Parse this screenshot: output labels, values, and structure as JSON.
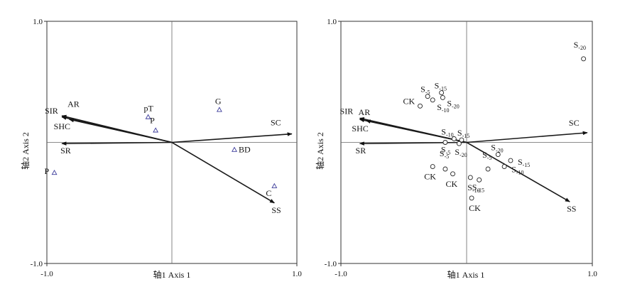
{
  "chart_data": [
    {
      "type": "scatter",
      "subtype": "ordination-biplot",
      "xlabel": "轴1 Axis 1",
      "ylabel": "轴2 Axis 2",
      "xlim": [
        -1.0,
        1.0
      ],
      "ylim": [
        -1.0,
        1.0
      ],
      "xticks": [
        "-1.0",
        "1.0"
      ],
      "yticks": [
        "1.0",
        "-1.0"
      ],
      "grid": false,
      "vectors": [
        {
          "label": "SIR",
          "x": -0.88,
          "y": 0.22
        },
        {
          "label": "AR",
          "x": -0.88,
          "y": 0.21
        },
        {
          "label": "SHC",
          "x": -0.82,
          "y": 0.19
        },
        {
          "label": "SR",
          "x": -0.88,
          "y": -0.01
        },
        {
          "label": "SC",
          "x": 0.96,
          "y": 0.07
        },
        {
          "label": "SS",
          "x": 0.82,
          "y": -0.5
        }
      ],
      "points": [
        {
          "label": "pT",
          "x": -0.19,
          "y": 0.21
        },
        {
          "label": "P",
          "x": -0.13,
          "y": 0.1
        },
        {
          "label": "G",
          "x": 0.38,
          "y": 0.27
        },
        {
          "label": "BD",
          "x": 0.5,
          "y": -0.06
        },
        {
          "label": "C",
          "x": 0.82,
          "y": -0.36
        },
        {
          "label": "P",
          "x": -0.94,
          "y": -0.25
        }
      ]
    },
    {
      "type": "scatter",
      "subtype": "ordination-biplot",
      "xlabel": "轴1 Axis 1",
      "ylabel": "轴2 Axis 2",
      "xlim": [
        -1.0,
        1.0
      ],
      "ylim": [
        -1.0,
        1.0
      ],
      "xticks": [
        "-1.0",
        "1.0"
      ],
      "yticks": [
        "1.0",
        "-1.0"
      ],
      "grid": false,
      "vectors": [
        {
          "label": "SIR",
          "x": -0.85,
          "y": 0.2
        },
        {
          "label": "AR",
          "x": -0.85,
          "y": 0.19
        },
        {
          "label": "SHC",
          "x": -0.8,
          "y": 0.18
        },
        {
          "label": "SR",
          "x": -0.85,
          "y": -0.01
        },
        {
          "label": "SC",
          "x": 0.96,
          "y": 0.08
        },
        {
          "label": "SS",
          "x": 0.82,
          "y": -0.49
        }
      ],
      "points": [
        {
          "label": "S-20",
          "main": "S",
          "sub": "-20",
          "x": 0.93,
          "y": 0.69
        },
        {
          "label": "S-5",
          "main": "S",
          "sub": "-5",
          "x": -0.31,
          "y": 0.38
        },
        {
          "label": "S-15",
          "main": "S",
          "sub": "-15",
          "x": -0.2,
          "y": 0.41
        },
        {
          "label": "CK",
          "main": "CK",
          "sub": "",
          "x": -0.37,
          "y": 0.3
        },
        {
          "label": "S-10",
          "main": "S",
          "sub": "-10",
          "x": -0.27,
          "y": 0.35
        },
        {
          "label": "S-20",
          "main": "S",
          "sub": "-20",
          "x": -0.19,
          "y": 0.37
        },
        {
          "label": "S-10",
          "main": "S",
          "sub": "-10",
          "x": -0.1,
          "y": 0.03
        },
        {
          "label": "S-15",
          "main": "S",
          "sub": "-15",
          "x": -0.04,
          "y": 0.02
        },
        {
          "label": "S-5",
          "main": "S",
          "sub": "-5",
          "x": -0.17,
          "y": 0.0
        },
        {
          "label": "S-20",
          "main": "S",
          "sub": "-20",
          "x": -0.06,
          "y": -0.01
        },
        {
          "label": "S-20",
          "main": "S",
          "sub": "-20",
          "x": 0.25,
          "y": -0.1
        },
        {
          "label": "S-15",
          "main": "S",
          "sub": "-15",
          "x": 0.35,
          "y": -0.15
        },
        {
          "label": "S-5",
          "main": "S",
          "sub": "-5",
          "x": -0.17,
          "y": -0.22
        },
        {
          "label": "S-5",
          "main": "S",
          "sub": "-5",
          "x": 0.17,
          "y": -0.22
        },
        {
          "label": "S-10",
          "main": "S",
          "sub": "-10",
          "x": 0.3,
          "y": -0.2
        },
        {
          "label": "CK",
          "main": "CK",
          "sub": "",
          "x": -0.27,
          "y": -0.2
        },
        {
          "label": "CK",
          "main": "CK",
          "sub": "",
          "x": -0.11,
          "y": -0.26
        },
        {
          "label": "S-10",
          "main": "S",
          "sub": "-10",
          "x": 0.03,
          "y": -0.29
        },
        {
          "label": "S-15",
          "main": "S",
          "sub": "-15",
          "x": 0.1,
          "y": -0.31
        },
        {
          "label": "CK",
          "main": "CK",
          "sub": "",
          "x": 0.04,
          "y": -0.46
        }
      ]
    }
  ]
}
